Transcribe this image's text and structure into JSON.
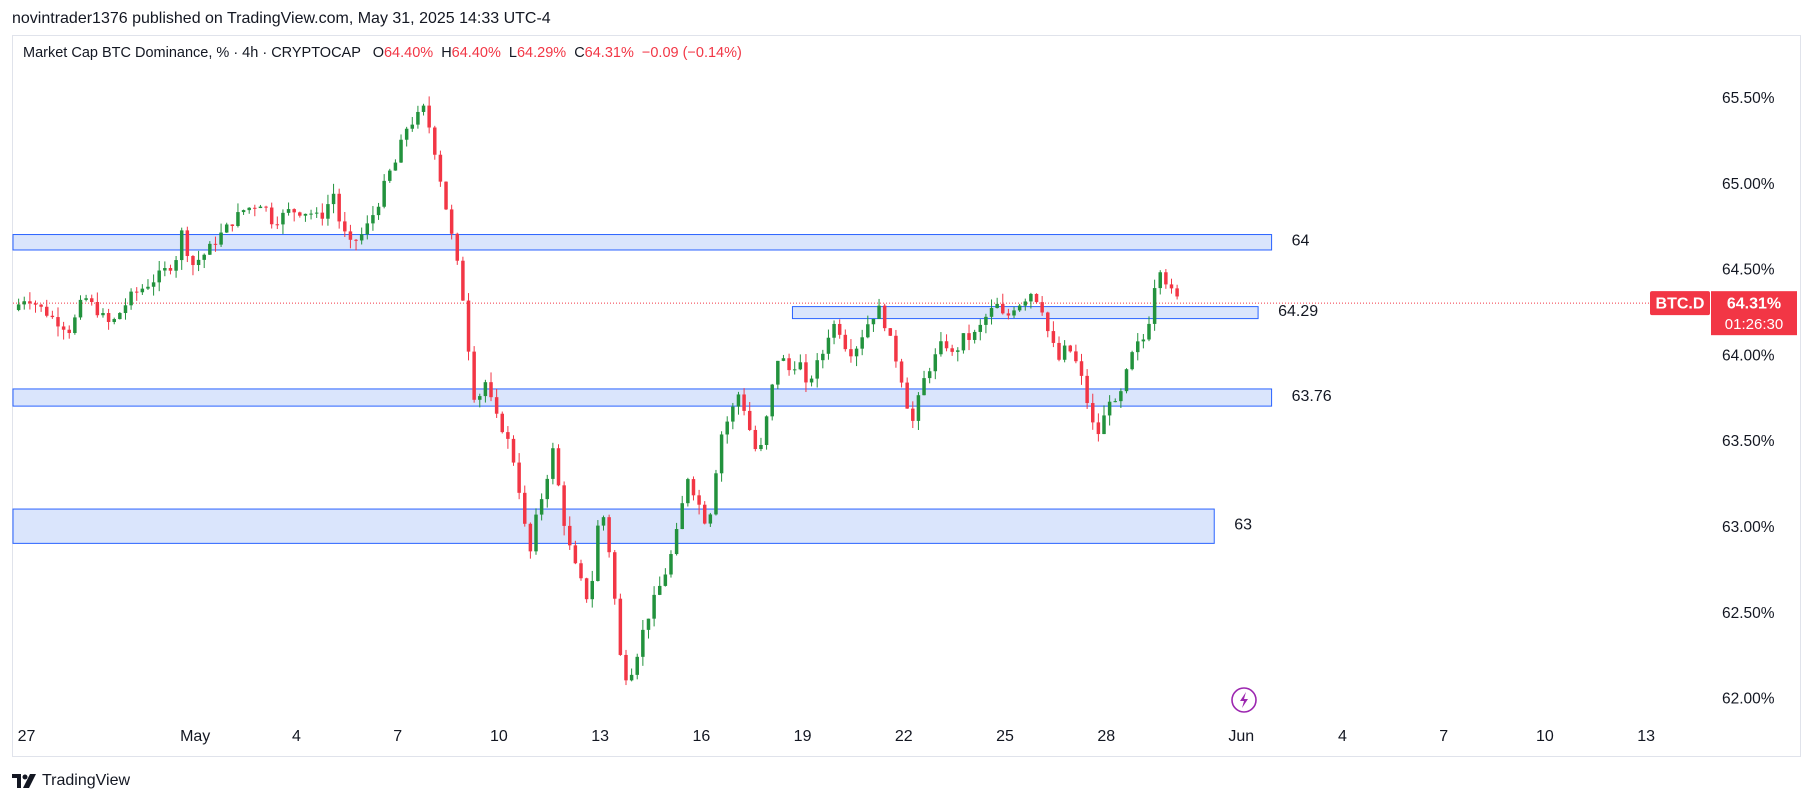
{
  "header": {
    "published_line": "novintrader1376 published on TradingView.com, May 31, 2025 14:33 UTC-4"
  },
  "legend": {
    "symbol_line": "Market Cap BTC Dominance, % · 4h · CRYPTOCAP",
    "o_label": "O",
    "o_value": "64.40%",
    "h_label": "H",
    "h_value": "64.40%",
    "l_label": "L",
    "l_value": "64.29%",
    "c_label": "C",
    "c_value": "64.31%",
    "change": "−0.09 (−0.14%)"
  },
  "footer": {
    "brand": "TradingView"
  },
  "colors": {
    "up": "#22923d",
    "down": "#f23645",
    "zone_fill": "#d3e0fb",
    "zone_stroke": "#2962ff",
    "price_line": "#f23645",
    "text": "#131722",
    "muted": "#ffffff"
  },
  "chart_data": {
    "type": "candlestick",
    "symbol": "BTC.D",
    "interval": "4h",
    "ylim": [
      61.8,
      65.7
    ],
    "y_ticks": [
      "65.50%",
      "65.00%",
      "64.50%",
      "64.00%",
      "63.50%",
      "63.00%",
      "62.50%",
      "62.00%"
    ],
    "y_tick_values": [
      65.5,
      65.0,
      64.5,
      64.0,
      63.5,
      63.0,
      62.5,
      62.0
    ],
    "x_ticks": [
      "27",
      "May",
      "4",
      "7",
      "10",
      "13",
      "16",
      "19",
      "22",
      "25",
      "28",
      "Jun",
      "4",
      "7",
      "10",
      "13"
    ],
    "x_tick_days": [
      -4,
      1,
      4,
      7,
      10,
      13,
      16,
      19,
      22,
      25,
      28,
      32,
      35,
      38,
      41,
      44
    ],
    "x_range_days": [
      -4.4,
      45.3
    ],
    "current_price": {
      "value": 64.31,
      "label": "64.31%",
      "symbol": "BTC.D",
      "countdown": "01:26:30"
    },
    "zones": [
      {
        "label": "64",
        "low": 64.62,
        "high": 64.71,
        "start_day": -4.4,
        "end_day": 32.9
      },
      {
        "label": "64.29",
        "low": 64.22,
        "high": 64.29,
        "start_day": 18.7,
        "end_day": 32.5
      },
      {
        "label": "63.76",
        "low": 63.71,
        "high": 63.81,
        "start_day": -4.4,
        "end_day": 32.9
      },
      {
        "label": "63",
        "low": 62.91,
        "high": 63.11,
        "start_day": -4.4,
        "end_day": 31.2
      }
    ],
    "close_path": [
      [
        -4.4,
        64.27
      ],
      [
        -4.0,
        64.35
      ],
      [
        -3.2,
        64.22
      ],
      [
        -2.7,
        64.15
      ],
      [
        -2.3,
        64.35
      ],
      [
        -1.5,
        64.18
      ],
      [
        -0.9,
        64.35
      ],
      [
        -0.2,
        64.45
      ],
      [
        0.4,
        64.55
      ],
      [
        0.6,
        64.72
      ],
      [
        0.9,
        64.53
      ],
      [
        1.3,
        64.6
      ],
      [
        1.8,
        64.72
      ],
      [
        2.4,
        64.85
      ],
      [
        3.0,
        64.9
      ],
      [
        3.3,
        64.78
      ],
      [
        3.8,
        64.85
      ],
      [
        4.4,
        64.84
      ],
      [
        4.7,
        64.8
      ],
      [
        5.1,
        64.95
      ],
      [
        5.3,
        64.76
      ],
      [
        5.6,
        64.65
      ],
      [
        6.0,
        64.72
      ],
      [
        6.4,
        64.88
      ],
      [
        6.7,
        65.05
      ],
      [
        7.0,
        65.15
      ],
      [
        7.2,
        65.32
      ],
      [
        7.6,
        65.4
      ],
      [
        7.8,
        65.45
      ],
      [
        8.1,
        65.2
      ],
      [
        8.3,
        65.0
      ],
      [
        8.6,
        64.7
      ],
      [
        8.9,
        64.4
      ],
      [
        9.1,
        64.05
      ],
      [
        9.3,
        63.72
      ],
      [
        9.6,
        63.85
      ],
      [
        9.9,
        63.65
      ],
      [
        10.2,
        63.55
      ],
      [
        10.5,
        63.35
      ],
      [
        10.7,
        63.1
      ],
      [
        10.9,
        62.82
      ],
      [
        11.1,
        63.05
      ],
      [
        11.4,
        63.28
      ],
      [
        11.6,
        63.45
      ],
      [
        11.8,
        63.2
      ],
      [
        12.0,
        62.95
      ],
      [
        12.3,
        62.75
      ],
      [
        12.6,
        62.6
      ],
      [
        12.8,
        62.72
      ],
      [
        13.0,
        63.15
      ],
      [
        13.2,
        62.98
      ],
      [
        13.4,
        62.65
      ],
      [
        13.6,
        62.25
      ],
      [
        13.8,
        62.12
      ],
      [
        14.0,
        62.2
      ],
      [
        14.3,
        62.42
      ],
      [
        14.6,
        62.58
      ],
      [
        14.9,
        62.72
      ],
      [
        15.2,
        62.9
      ],
      [
        15.4,
        63.1
      ],
      [
        15.6,
        63.3
      ],
      [
        15.9,
        63.15
      ],
      [
        16.2,
        63.0
      ],
      [
        16.4,
        63.3
      ],
      [
        16.6,
        63.55
      ],
      [
        16.9,
        63.68
      ],
      [
        17.1,
        63.78
      ],
      [
        17.3,
        63.68
      ],
      [
        17.5,
        63.52
      ],
      [
        17.7,
        63.4
      ],
      [
        17.9,
        63.6
      ],
      [
        18.1,
        63.82
      ],
      [
        18.3,
        64.02
      ],
      [
        18.6,
        63.92
      ],
      [
        18.9,
        63.98
      ],
      [
        19.1,
        63.82
      ],
      [
        19.3,
        63.9
      ],
      [
        19.6,
        64.02
      ],
      [
        19.8,
        64.15
      ],
      [
        20.0,
        64.2
      ],
      [
        20.3,
        64.05
      ],
      [
        20.5,
        64.02
      ],
      [
        20.7,
        64.1
      ],
      [
        21.0,
        64.22
      ],
      [
        21.3,
        64.28
      ],
      [
        21.5,
        64.15
      ],
      [
        21.7,
        64.03
      ],
      [
        21.9,
        63.9
      ],
      [
        22.1,
        63.72
      ],
      [
        22.3,
        63.6
      ],
      [
        22.5,
        63.82
      ],
      [
        22.8,
        63.95
      ],
      [
        23.0,
        64.02
      ],
      [
        23.2,
        64.1
      ],
      [
        23.4,
        64.0
      ],
      [
        23.6,
        64.05
      ],
      [
        23.8,
        64.12
      ],
      [
        24.0,
        64.1
      ],
      [
        24.3,
        64.18
      ],
      [
        24.5,
        64.25
      ],
      [
        24.8,
        64.3
      ],
      [
        25.0,
        64.2
      ],
      [
        25.2,
        64.28
      ],
      [
        25.5,
        64.32
      ],
      [
        25.8,
        64.38
      ],
      [
        26.1,
        64.28
      ],
      [
        26.3,
        64.12
      ],
      [
        26.6,
        63.98
      ],
      [
        26.8,
        64.05
      ],
      [
        27.0,
        64.02
      ],
      [
        27.3,
        63.85
      ],
      [
        27.5,
        63.68
      ],
      [
        27.7,
        63.52
      ],
      [
        27.9,
        63.62
      ],
      [
        28.1,
        63.76
      ],
      [
        28.3,
        63.7
      ],
      [
        28.5,
        63.82
      ],
      [
        28.7,
        63.98
      ],
      [
        28.9,
        64.06
      ],
      [
        29.2,
        64.12
      ],
      [
        29.4,
        64.4
      ],
      [
        29.6,
        64.52
      ],
      [
        29.9,
        64.38
      ],
      [
        30.2,
        64.31
      ]
    ]
  }
}
